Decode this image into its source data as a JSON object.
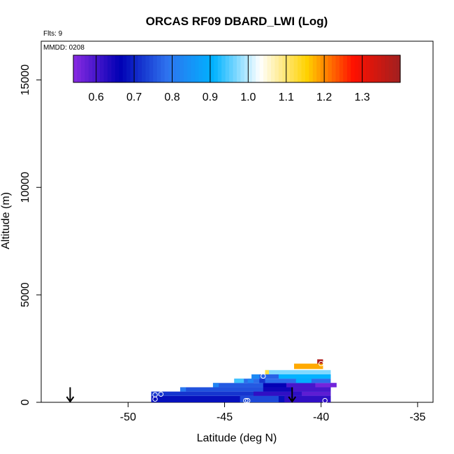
{
  "chart_data": {
    "type": "heatmap",
    "title": "ORCAS RF09 DBARD_LWI (Log)",
    "flights_note": "Flts: 9",
    "date_note": "MMDD: 0208",
    "xlabel": "Latitude (deg N)",
    "ylabel": "Altitude (m)",
    "xlim": [
      -54.5,
      -34.2
    ],
    "ylim": [
      0,
      16800
    ],
    "x_ticks": [
      -50,
      -45,
      -40,
      -35
    ],
    "x_tick_labels": [
      "-50",
      "-45",
      "-40",
      "-35"
    ],
    "y_ticks": [
      0,
      5000,
      10000,
      15000
    ],
    "y_tick_labels": [
      "0",
      "5000",
      "10000",
      "15000"
    ],
    "colorbar": {
      "range": [
        0.54,
        1.4
      ],
      "ticks": [
        0.6,
        0.7,
        0.8,
        0.9,
        1.0,
        1.1,
        1.2,
        1.3
      ],
      "tick_labels": [
        "0.6",
        "0.7",
        "0.8",
        "0.9",
        "1.0",
        "1.1",
        "1.2",
        "1.3"
      ],
      "colors": [
        "#8a2be2",
        "#0000b4",
        "#2e72ee",
        "#00b2ff",
        "#ffffff",
        "#ffd200",
        "#ff1000",
        "#a02020"
      ]
    },
    "cells": [
      {
        "x0": -48.8,
        "x1": -39.5,
        "y0": 0,
        "y1": 300,
        "value": 0.68
      },
      {
        "x0": -44.2,
        "x1": -42.2,
        "y0": 0,
        "y1": 300,
        "value": 0.74
      },
      {
        "x0": -41.9,
        "x1": -39.5,
        "y0": 0,
        "y1": 300,
        "value": 0.62
      },
      {
        "x0": -48.8,
        "x1": -39.5,
        "y0": 300,
        "y1": 500,
        "value": 0.72
      },
      {
        "x0": -43.5,
        "x1": -41.0,
        "y0": 300,
        "y1": 500,
        "value": 0.62
      },
      {
        "x0": -41.0,
        "x1": -39.5,
        "y0": 300,
        "y1": 500,
        "value": 0.58
      },
      {
        "x0": -47.3,
        "x1": -39.5,
        "y0": 500,
        "y1": 700,
        "value": 0.75
      },
      {
        "x0": -47.3,
        "x1": -47.0,
        "y0": 500,
        "y1": 700,
        "value": 0.8
      },
      {
        "x0": -43.0,
        "x1": -41.5,
        "y0": 500,
        "y1": 700,
        "value": 0.65
      },
      {
        "x0": -41.5,
        "x1": -39.5,
        "y0": 500,
        "y1": 700,
        "value": 0.6
      },
      {
        "x0": -45.6,
        "x1": -39.2,
        "y0": 700,
        "y1": 900,
        "value": 0.76
      },
      {
        "x0": -43.0,
        "x1": -41.8,
        "y0": 700,
        "y1": 900,
        "value": 0.66
      },
      {
        "x0": -41.8,
        "x1": -40.3,
        "y0": 700,
        "y1": 900,
        "value": 0.6
      },
      {
        "x0": -40.3,
        "x1": -39.2,
        "y0": 700,
        "y1": 900,
        "value": 0.56
      },
      {
        "x0": -45.6,
        "x1": -45.3,
        "y0": 700,
        "y1": 900,
        "value": 0.82
      },
      {
        "x0": -44.5,
        "x1": -39.5,
        "y0": 900,
        "y1": 1100,
        "value": 0.78
      },
      {
        "x0": -44.5,
        "x1": -44.0,
        "y0": 900,
        "y1": 1100,
        "value": 0.94
      },
      {
        "x0": -43.8,
        "x1": -43.5,
        "y0": 900,
        "y1": 1100,
        "value": 0.82
      },
      {
        "x0": -43.2,
        "x1": -42.9,
        "y0": 900,
        "y1": 1100,
        "value": 0.72
      },
      {
        "x0": -41.3,
        "x1": -40.5,
        "y0": 900,
        "y1": 1100,
        "value": 0.9
      },
      {
        "x0": -43.6,
        "x1": -39.5,
        "y0": 1100,
        "y1": 1300,
        "value": 0.77
      },
      {
        "x0": -43.6,
        "x1": -43.2,
        "y0": 1100,
        "y1": 1300,
        "value": 0.83
      },
      {
        "x0": -42.2,
        "x1": -39.5,
        "y0": 1100,
        "y1": 1300,
        "value": 0.91
      },
      {
        "x0": -42.9,
        "x1": -39.5,
        "y0": 1300,
        "y1": 1500,
        "value": 0.97
      },
      {
        "x0": -42.9,
        "x1": -42.7,
        "y0": 1300,
        "y1": 1500,
        "value": 1.12
      },
      {
        "x0": -41.4,
        "x1": -39.9,
        "y0": 1550,
        "y1": 1800,
        "value": 1.18
      },
      {
        "x0": -40.2,
        "x1": -39.9,
        "y0": 1800,
        "y1": 2000,
        "value": 1.38
      }
    ],
    "markers": [
      {
        "x": -48.6,
        "y": 350
      },
      {
        "x": -48.6,
        "y": 150
      },
      {
        "x": -48.3,
        "y": 380
      },
      {
        "x": -43.9,
        "y": 80
      },
      {
        "x": -43.8,
        "y": 80
      },
      {
        "x": -43.0,
        "y": 1220
      },
      {
        "x": -40.0,
        "y": 1800
      },
      {
        "x": -39.8,
        "y": 80
      }
    ],
    "arrows": [
      {
        "x": -53.0,
        "y_top": 700,
        "y_bottom": 0
      },
      {
        "x": -41.5,
        "y_top": 700,
        "y_bottom": 0
      }
    ]
  }
}
